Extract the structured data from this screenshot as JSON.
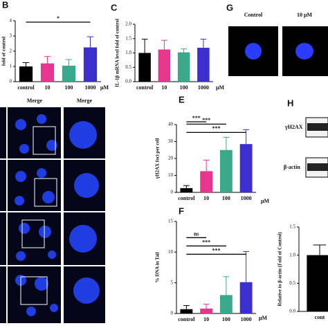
{
  "chart_data": [
    {
      "type": "bar",
      "letter": "B",
      "ylabel": "fold of control",
      "unit": "μM",
      "categories": [
        "control",
        "10",
        "100",
        "1000"
      ],
      "values": [
        1.0,
        1.2,
        1.05,
        2.25
      ],
      "errors": [
        0.25,
        0.45,
        0.4,
        0.7
      ],
      "colors": [
        "#000000",
        "#e8368f",
        "#3aa88a",
        "#3b2fd0"
      ],
      "ylim": [
        0,
        4
      ],
      "yticks": [
        0,
        1,
        2,
        3,
        4
      ],
      "significance": [
        {
          "label": "*",
          "groups": [
            "control",
            "1000"
          ]
        }
      ]
    },
    {
      "type": "bar",
      "letter": "C",
      "ylabel": "IL-1β mRNA level fold of control",
      "unit": "μM",
      "categories": [
        "control",
        "10",
        "100",
        "1000"
      ],
      "values": [
        1.0,
        1.12,
        1.02,
        1.18
      ],
      "errors": [
        0.48,
        0.32,
        0.12,
        0.3
      ],
      "colors": [
        "#000000",
        "#e8368f",
        "#3aa88a",
        "#3b2fd0"
      ],
      "ylim": [
        0,
        2
      ],
      "yticks": [
        {
          "value": 0,
          "label": "0.0"
        },
        {
          "value": 0.5,
          "label": "0.5"
        },
        {
          "value": 1,
          "label": "1.0"
        },
        {
          "value": 1.5,
          "label": "1.5"
        },
        {
          "value": 2,
          "label": "2.0"
        }
      ]
    },
    {
      "type": "bar",
      "letter": "E",
      "ylabel": "γH2AX foci per cell",
      "unit": "μM",
      "categories": [
        "control",
        "10",
        "100",
        "1000"
      ],
      "values": [
        2.5,
        12.5,
        25,
        28.5
      ],
      "errors": [
        1.5,
        6.5,
        7.5,
        8.5
      ],
      "colors": [
        "#000000",
        "#e8368f",
        "#3aa88a",
        "#3b2fd0"
      ],
      "ylim": [
        0,
        40
      ],
      "yticks": [
        0,
        10,
        20,
        30,
        40
      ],
      "significance": [
        {
          "label": "***",
          "groups": [
            "control",
            "10"
          ]
        },
        {
          "label": "***",
          "groups": [
            "control",
            "100"
          ]
        },
        {
          "label": "***",
          "groups": [
            "control",
            "1000"
          ]
        }
      ]
    },
    {
      "type": "bar",
      "letter": "F",
      "ylabel": "% DNA in Tail",
      "unit": "μM",
      "categories": [
        "control",
        "10",
        "100",
        "1000"
      ],
      "values": [
        0.7,
        0.8,
        3.0,
        5.1
      ],
      "errors": [
        0.6,
        0.7,
        3.0,
        5.0
      ],
      "colors": [
        "#000000",
        "#e8368f",
        "#3aa88a",
        "#3b2fd0"
      ],
      "ylim": [
        0,
        15
      ],
      "yticks": [
        0,
        5,
        10,
        15
      ],
      "significance": [
        {
          "label": "ns",
          "groups": [
            "control",
            "10"
          ]
        },
        {
          "label": "***",
          "groups": [
            "control",
            "100"
          ]
        },
        {
          "label": "***",
          "groups": [
            "control",
            "1000"
          ]
        }
      ]
    },
    {
      "type": "bar",
      "letter": "H",
      "ylabel": "Relative to β-actin (Fold of Control)",
      "blots": [
        "γH2AX",
        "β-actin"
      ],
      "categories": [
        "cont"
      ],
      "values": [
        1.0
      ],
      "errors": [
        0.18
      ],
      "colors": [
        "#000000"
      ],
      "ylim": [
        0,
        1.5
      ],
      "yticks": [
        {
          "value": 0,
          "label": "0.0"
        },
        {
          "value": 0.5,
          "label": "0.5"
        },
        {
          "value": 1,
          "label": "1.0"
        },
        {
          "value": 1.5,
          "label": "1.5"
        }
      ]
    }
  ],
  "images": {
    "letter": "G",
    "labels": [
      "Control",
      "10 μM"
    ]
  },
  "microscopy": {
    "labels": [
      "Merge",
      "Merge"
    ]
  }
}
